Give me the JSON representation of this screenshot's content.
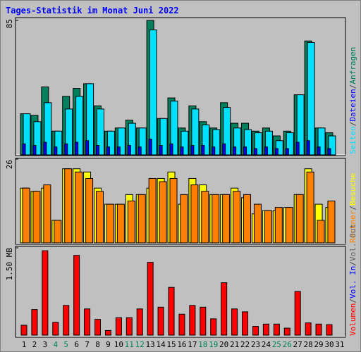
{
  "chart_data": [
    {
      "type": "bar",
      "title": "Tages-Statistik im Monat Juni 2022",
      "title_color": "#0000ff",
      "ylim": [
        0,
        85
      ],
      "yticks": [
        85
      ],
      "legend_separator": "/",
      "series": [
        {
          "name": "Anfragen",
          "color": "#00805c",
          "values": [
            26,
            25,
            43,
            15,
            37,
            42,
            45,
            31,
            15,
            17,
            22,
            17,
            85,
            23,
            36,
            17,
            31,
            21,
            17,
            33,
            20,
            20,
            15,
            17,
            12,
            15,
            38,
            72,
            17,
            14,
            0
          ]
        },
        {
          "name": "Dateien",
          "color": "#0000ff",
          "values": [
            7,
            6,
            8,
            5,
            7,
            8,
            9,
            6,
            5,
            5,
            6,
            5,
            10,
            6,
            7,
            5,
            6,
            6,
            5,
            7,
            5,
            5,
            4,
            5,
            4,
            4,
            8,
            9,
            5,
            4,
            0
          ]
        },
        {
          "name": "Seiten",
          "color": "#00e0ff",
          "values": [
            26,
            21,
            33,
            15,
            29,
            37,
            45,
            29,
            15,
            17,
            20,
            17,
            79,
            23,
            34,
            15,
            29,
            19,
            16,
            30,
            17,
            16,
            14,
            15,
            9,
            14,
            38,
            71,
            17,
            12,
            0
          ]
        }
      ]
    },
    {
      "type": "bar",
      "ylim": [
        0,
        26
      ],
      "yticks": [
        26
      ],
      "legend_separator": "/",
      "series": [
        {
          "name": "Besuche",
          "color": "#ffff00",
          "values": [
            17,
            16,
            17,
            7,
            23,
            23,
            22,
            17,
            12,
            12,
            15,
            15,
            17,
            20,
            22,
            12,
            20,
            18,
            15,
            15,
            17,
            14,
            9,
            10,
            10,
            11,
            15,
            23,
            12,
            11,
            0
          ]
        },
        {
          "name": "Rechner",
          "color": "#ff8000",
          "values": [
            17,
            16,
            18,
            7,
            23,
            22,
            20,
            16,
            12,
            12,
            13,
            15,
            20,
            19,
            20,
            15,
            18,
            16,
            15,
            15,
            16,
            15,
            12,
            10,
            11,
            11,
            15,
            22,
            7,
            13,
            0
          ]
        }
      ]
    },
    {
      "type": "bar",
      "ylim": [
        0,
        1.5
      ],
      "yticks": [
        {
          "value": 1.5,
          "label": "1.50 MB"
        }
      ],
      "legend_separator": "/",
      "legend_extra": [
        {
          "name": "Vol. Out",
          "color": "#606060"
        },
        {
          "name": "Vol. In",
          "color": "#0000ff"
        }
      ],
      "series": [
        {
          "name": "Volumen",
          "color": "#ff0000",
          "values": [
            0.17,
            0.44,
            1.45,
            0.22,
            0.51,
            1.37,
            0.45,
            0.27,
            0.08,
            0.3,
            0.3,
            0.45,
            1.25,
            0.48,
            0.82,
            0.36,
            0.51,
            0.48,
            0.28,
            0.9,
            0.45,
            0.4,
            0.15,
            0.19,
            0.19,
            0.12,
            0.75,
            0.21,
            0.19,
            0.18,
            0
          ]
        }
      ],
      "categories": [
        "1",
        "2",
        "3",
        "4",
        "5",
        "6",
        "7",
        "8",
        "9",
        "10",
        "11",
        "12",
        "13",
        "14",
        "15",
        "16",
        "17",
        "18",
        "19",
        "20",
        "21",
        "22",
        "23",
        "24",
        "25",
        "26",
        "27",
        "28",
        "29",
        "30",
        "31"
      ],
      "weekend_color": "#00805c",
      "weekend_indices": [
        3,
        4,
        10,
        11,
        17,
        18,
        24,
        25
      ]
    }
  ]
}
